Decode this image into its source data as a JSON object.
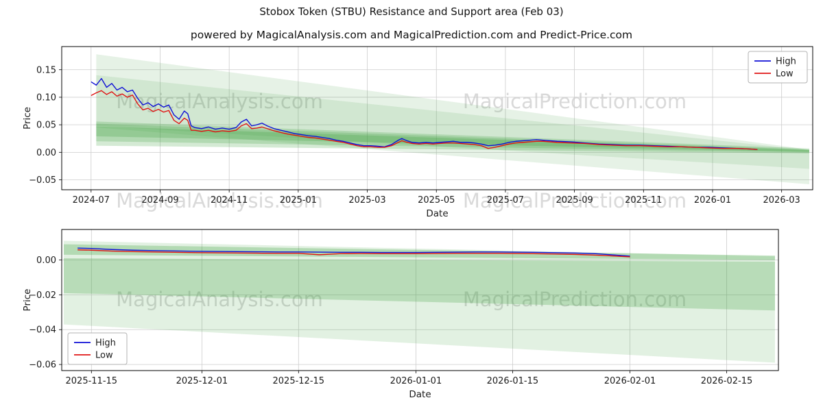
{
  "title": "Stobox Token (STBU) Resistance and Support area (Feb 03)",
  "subtitle": "powered by MagicalAnalysis.com and MagicalPrediction.com and Predict-Price.com",
  "watermark": {
    "left": "MagicalAnalysis.com",
    "right": "MagicalPrediction.com",
    "color": "#d9d9d9"
  },
  "colors": {
    "high": "#0f0fd6",
    "low": "#e01414",
    "band": "#3a9e3a",
    "grid": "#cccccc",
    "frame": "#000000",
    "text": "#1a1a1a"
  },
  "chart_data": [
    {
      "type": "line",
      "title": "",
      "xlabel": "Date",
      "ylabel": "Price",
      "xlim": [
        -0.85,
        20.9
      ],
      "ylim": [
        -0.068,
        0.192
      ],
      "grid": true,
      "legend": {
        "position": "top-right",
        "entries": [
          {
            "label": "High",
            "color": "high"
          },
          {
            "label": "Low",
            "color": "low"
          }
        ]
      },
      "x_ticks": [
        {
          "pos": 0,
          "label": "2024-07"
        },
        {
          "pos": 2,
          "label": "2024-09"
        },
        {
          "pos": 4,
          "label": "2024-11"
        },
        {
          "pos": 6,
          "label": "2025-01"
        },
        {
          "pos": 8,
          "label": "2025-03"
        },
        {
          "pos": 10,
          "label": "2025-05"
        },
        {
          "pos": 12,
          "label": "2025-07"
        },
        {
          "pos": 14,
          "label": "2025-09"
        },
        {
          "pos": 16,
          "label": "2025-11"
        },
        {
          "pos": 18,
          "label": "2026-01"
        },
        {
          "pos": 20,
          "label": "2026-03"
        }
      ],
      "y_ticks": [
        {
          "pos": 0.15,
          "label": "0.15"
        },
        {
          "pos": 0.1,
          "label": "0.10"
        },
        {
          "pos": 0.05,
          "label": "0.05"
        },
        {
          "pos": 0.0,
          "label": "0.00"
        },
        {
          "pos": -0.05,
          "label": "−0.05"
        }
      ],
      "bands": [
        {
          "opacity": 0.13,
          "points": [
            [
              0.15,
              0.178
            ],
            [
              20.8,
              0.005
            ],
            [
              20.8,
              -0.058
            ],
            [
              0.15,
              0.045
            ]
          ]
        },
        {
          "opacity": 0.12,
          "points": [
            [
              0.15,
              0.14
            ],
            [
              20.8,
              0.004
            ],
            [
              20.8,
              -0.03
            ],
            [
              0.15,
              0.048
            ]
          ]
        },
        {
          "opacity": 0.22,
          "points": [
            [
              0.15,
              0.056
            ],
            [
              20.8,
              0.007
            ],
            [
              20.8,
              -0.002
            ],
            [
              0.15,
              0.012
            ]
          ]
        },
        {
          "opacity": 0.22,
          "points": [
            [
              0.15,
              0.052
            ],
            [
              20.8,
              0.005
            ],
            [
              20.8,
              0.0
            ],
            [
              0.15,
              0.02
            ]
          ]
        },
        {
          "opacity": 0.25,
          "points": [
            [
              0.15,
              0.047
            ],
            [
              20.8,
              0.004
            ],
            [
              20.8,
              0.001
            ],
            [
              0.15,
              0.029
            ]
          ]
        }
      ],
      "series": [
        {
          "name": "High",
          "color": "high",
          "x": [
            0.0,
            0.15,
            0.3,
            0.45,
            0.6,
            0.75,
            0.9,
            1.05,
            1.2,
            1.35,
            1.5,
            1.65,
            1.8,
            1.95,
            2.1,
            2.25,
            2.4,
            2.55,
            2.7,
            2.8,
            2.9,
            3.0,
            3.2,
            3.4,
            3.6,
            3.8,
            4.0,
            4.2,
            4.35,
            4.5,
            4.65,
            4.8,
            4.95,
            5.1,
            5.3,
            5.5,
            5.7,
            5.9,
            6.1,
            6.3,
            6.5,
            6.7,
            6.9,
            7.1,
            7.3,
            7.5,
            7.7,
            7.9,
            8.1,
            8.3,
            8.5,
            8.7,
            8.9,
            9.0,
            9.15,
            9.3,
            9.5,
            9.7,
            9.9,
            10.1,
            10.3,
            10.5,
            10.7,
            10.9,
            11.1,
            11.3,
            11.5,
            11.7,
            11.9,
            12.1,
            12.3,
            12.5,
            12.7,
            12.9,
            13.1,
            13.5,
            13.9,
            14.3,
            14.7,
            15.1,
            15.5,
            15.9,
            16.3,
            16.7,
            17.1,
            17.5,
            17.9,
            18.3,
            18.7,
            19.1,
            19.3
          ],
          "y": [
            0.128,
            0.122,
            0.134,
            0.118,
            0.125,
            0.113,
            0.118,
            0.11,
            0.113,
            0.098,
            0.086,
            0.09,
            0.083,
            0.088,
            0.082,
            0.086,
            0.068,
            0.06,
            0.075,
            0.07,
            0.048,
            0.045,
            0.043,
            0.046,
            0.042,
            0.044,
            0.042,
            0.045,
            0.055,
            0.06,
            0.048,
            0.05,
            0.053,
            0.048,
            0.043,
            0.04,
            0.037,
            0.034,
            0.032,
            0.03,
            0.029,
            0.027,
            0.025,
            0.022,
            0.02,
            0.017,
            0.014,
            0.012,
            0.012,
            0.011,
            0.01,
            0.014,
            0.022,
            0.025,
            0.021,
            0.018,
            0.017,
            0.018,
            0.017,
            0.018,
            0.019,
            0.02,
            0.018,
            0.018,
            0.017,
            0.015,
            0.012,
            0.013,
            0.015,
            0.018,
            0.02,
            0.021,
            0.022,
            0.023,
            0.022,
            0.02,
            0.019,
            0.017,
            0.015,
            0.014,
            0.013,
            0.013,
            0.012,
            0.011,
            0.01,
            0.009,
            0.009,
            0.008,
            0.007,
            0.006,
            0.005
          ]
        },
        {
          "name": "Low",
          "color": "low",
          "x": [
            0.0,
            0.15,
            0.3,
            0.45,
            0.6,
            0.75,
            0.9,
            1.05,
            1.2,
            1.35,
            1.5,
            1.65,
            1.8,
            1.95,
            2.1,
            2.25,
            2.4,
            2.55,
            2.7,
            2.8,
            2.9,
            3.0,
            3.2,
            3.4,
            3.6,
            3.8,
            4.0,
            4.2,
            4.35,
            4.5,
            4.65,
            4.8,
            4.95,
            5.1,
            5.3,
            5.5,
            5.7,
            5.9,
            6.1,
            6.3,
            6.5,
            6.7,
            6.9,
            7.1,
            7.3,
            7.5,
            7.7,
            7.9,
            8.1,
            8.3,
            8.5,
            8.7,
            8.9,
            9.0,
            9.15,
            9.3,
            9.5,
            9.7,
            9.9,
            10.1,
            10.3,
            10.5,
            10.7,
            10.9,
            11.1,
            11.3,
            11.5,
            11.7,
            11.9,
            12.1,
            12.3,
            12.5,
            12.7,
            12.9,
            13.1,
            13.5,
            13.9,
            14.3,
            14.7,
            15.1,
            15.5,
            15.9,
            16.3,
            16.7,
            17.1,
            17.5,
            17.9,
            18.3,
            18.7,
            19.1,
            19.3
          ],
          "y": [
            0.103,
            0.108,
            0.112,
            0.105,
            0.11,
            0.102,
            0.106,
            0.1,
            0.104,
            0.088,
            0.077,
            0.08,
            0.074,
            0.078,
            0.073,
            0.076,
            0.058,
            0.052,
            0.062,
            0.058,
            0.04,
            0.04,
            0.038,
            0.04,
            0.037,
            0.039,
            0.038,
            0.04,
            0.048,
            0.052,
            0.043,
            0.044,
            0.046,
            0.043,
            0.039,
            0.036,
            0.033,
            0.031,
            0.029,
            0.027,
            0.026,
            0.024,
            0.022,
            0.02,
            0.018,
            0.015,
            0.012,
            0.01,
            0.01,
            0.009,
            0.009,
            0.012,
            0.018,
            0.021,
            0.018,
            0.016,
            0.015,
            0.016,
            0.015,
            0.016,
            0.017,
            0.017,
            0.016,
            0.015,
            0.014,
            0.012,
            0.007,
            0.009,
            0.012,
            0.015,
            0.017,
            0.018,
            0.019,
            0.02,
            0.02,
            0.018,
            0.017,
            0.016,
            0.014,
            0.013,
            0.012,
            0.012,
            0.011,
            0.01,
            0.01,
            0.009,
            0.008,
            0.007,
            0.007,
            0.006,
            0.005
          ]
        }
      ]
    },
    {
      "type": "line",
      "title": "",
      "xlabel": "Date",
      "ylabel": "Price",
      "xlim": [
        -4.3,
        99.5
      ],
      "ylim": [
        -0.0635,
        0.0175
      ],
      "grid": true,
      "legend": {
        "position": "bottom-left",
        "entries": [
          {
            "label": "High",
            "color": "high"
          },
          {
            "label": "Low",
            "color": "low"
          }
        ]
      },
      "x_ticks": [
        {
          "pos": 0,
          "label": "2025-11-15"
        },
        {
          "pos": 16,
          "label": "2025-12-01"
        },
        {
          "pos": 30,
          "label": "2025-12-15"
        },
        {
          "pos": 47,
          "label": "2026-01-01"
        },
        {
          "pos": 61,
          "label": "2026-01-15"
        },
        {
          "pos": 78,
          "label": "2026-02-01"
        },
        {
          "pos": 92,
          "label": "2026-02-15"
        }
      ],
      "y_ticks": [
        {
          "pos": 0.0,
          "label": "0.00"
        },
        {
          "pos": -0.02,
          "label": "−0.02"
        },
        {
          "pos": -0.04,
          "label": "−0.04"
        },
        {
          "pos": -0.06,
          "label": "−0.06"
        }
      ],
      "bands": [
        {
          "opacity": 0.15,
          "points": [
            [
              -4,
              0.011
            ],
            [
              99,
              0.002
            ],
            [
              99,
              -0.059
            ],
            [
              -4,
              -0.037
            ]
          ]
        },
        {
          "opacity": 0.25,
          "points": [
            [
              -4,
              0.001
            ],
            [
              99,
              -0.001
            ],
            [
              99,
              -0.029
            ],
            [
              -4,
              -0.019
            ]
          ]
        },
        {
          "opacity": 0.28,
          "points": [
            [
              -4,
              0.009
            ],
            [
              99,
              0.0025
            ],
            [
              99,
              0.0
            ],
            [
              -4,
              0.003
            ]
          ]
        }
      ],
      "series": [
        {
          "name": "High",
          "color": "high",
          "x": [
            -2,
            0,
            3,
            6,
            9,
            12,
            15,
            18,
            21,
            24,
            27,
            30,
            33,
            36,
            39,
            42,
            45,
            47,
            50,
            53,
            56,
            59,
            61,
            64,
            67,
            70,
            73,
            76,
            78
          ],
          "y": [
            0.0068,
            0.0066,
            0.006,
            0.0056,
            0.0054,
            0.0052,
            0.005,
            0.0049,
            0.0048,
            0.0047,
            0.0046,
            0.0046,
            0.0045,
            0.0044,
            0.0044,
            0.0043,
            0.0043,
            0.0043,
            0.0044,
            0.0045,
            0.0046,
            0.0046,
            0.0045,
            0.0044,
            0.0042,
            0.004,
            0.0036,
            0.0028,
            0.0022
          ]
        },
        {
          "name": "Low",
          "color": "low",
          "x": [
            -2,
            0,
            3,
            6,
            9,
            12,
            15,
            18,
            21,
            24,
            27,
            30,
            33,
            36,
            39,
            42,
            45,
            47,
            50,
            53,
            56,
            59,
            61,
            64,
            67,
            70,
            73,
            76,
            78
          ],
          "y": [
            0.0058,
            0.0056,
            0.0051,
            0.0048,
            0.0046,
            0.0044,
            0.0042,
            0.0041,
            0.004,
            0.0039,
            0.0038,
            0.0038,
            0.003,
            0.0036,
            0.0037,
            0.0036,
            0.0036,
            0.0036,
            0.0037,
            0.0038,
            0.0038,
            0.0038,
            0.0037,
            0.0036,
            0.0034,
            0.0032,
            0.0028,
            0.0022,
            0.0018
          ]
        }
      ]
    }
  ]
}
